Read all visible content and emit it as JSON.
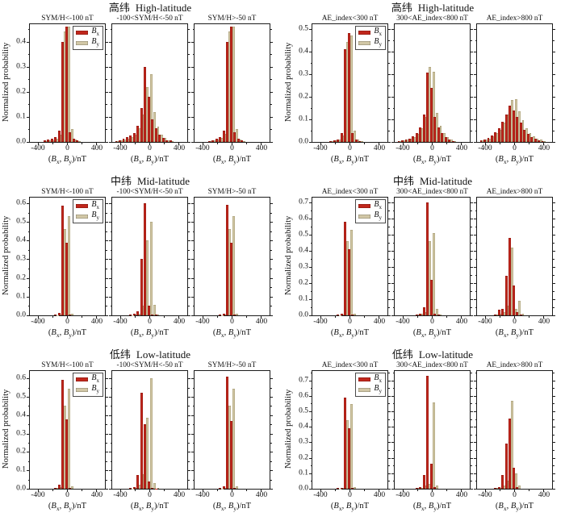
{
  "figure": {
    "colors": {
      "bx": "#c1271c",
      "by": "#d1c7a6",
      "axis": "#1c1c1c"
    },
    "legend": {
      "items": [
        {
          "series": "bx",
          "base": "B",
          "sub": "x"
        },
        {
          "series": "by",
          "base": "B",
          "sub": "y"
        }
      ]
    },
    "xlabel_parts": [
      {
        "t": "("
      },
      {
        "t": "B",
        "i": true,
        "sub": "x"
      },
      {
        "t": ", "
      },
      {
        "t": "B",
        "i": true,
        "sub": "y"
      },
      {
        "t": ")/nT"
      }
    ],
    "xlim": [
      -520,
      520
    ],
    "xticks_major": [
      -400,
      0,
      400
    ],
    "xticks_minor": [
      -200,
      200
    ],
    "grid": false
  },
  "chart_data": {
    "type": "bar",
    "note": "bars = [bin center x (nT), Bx normalized probability, By normalized probability]",
    "groups": [
      {
        "title_cn": "高纬",
        "title_en": "High-latitude",
        "ylabel": "Normalized probability",
        "ylim": 0.47,
        "yticks": [
          0,
          0.1,
          0.2,
          0.3,
          0.4
        ],
        "panels": [
          {
            "title": "SYM/H<-100 nT",
            "bars": [
              [
                -300,
                0.005,
                0.003
              ],
              [
                -250,
                0.01,
                0.006
              ],
              [
                -200,
                0.012,
                0.008
              ],
              [
                -150,
                0.02,
                0.014
              ],
              [
                -100,
                0.045,
                0.03
              ],
              [
                -50,
                0.4,
                0.44
              ],
              [
                0,
                0.46,
                0.46
              ],
              [
                50,
                0.04,
                0.05
              ],
              [
                100,
                0.012,
                0.01
              ],
              [
                150,
                0.005,
                0.004
              ]
            ]
          },
          {
            "title": "-100<SYM/H<-50 nT",
            "bars": [
              [
                -450,
                0.004,
                0.003
              ],
              [
                -400,
                0.008,
                0.006
              ],
              [
                -350,
                0.012,
                0.01
              ],
              [
                -300,
                0.018,
                0.014
              ],
              [
                -250,
                0.025,
                0.02
              ],
              [
                -200,
                0.035,
                0.03
              ],
              [
                -150,
                0.065,
                0.055
              ],
              [
                -100,
                0.135,
                0.11
              ],
              [
                -50,
                0.3,
                0.22
              ],
              [
                0,
                0.18,
                0.27
              ],
              [
                50,
                0.09,
                0.12
              ],
              [
                100,
                0.055,
                0.06
              ],
              [
                150,
                0.03,
                0.03
              ],
              [
                200,
                0.015,
                0.015
              ],
              [
                250,
                0.008,
                0.008
              ],
              [
                300,
                0.005,
                0.004
              ]
            ]
          },
          {
            "title": "SYM/H>-50 nT",
            "bars": [
              [
                -300,
                0.004,
                0.002
              ],
              [
                -250,
                0.008,
                0.005
              ],
              [
                -200,
                0.012,
                0.009
              ],
              [
                -150,
                0.02,
                0.015
              ],
              [
                -100,
                0.045,
                0.032
              ],
              [
                -50,
                0.4,
                0.44
              ],
              [
                0,
                0.46,
                0.46
              ],
              [
                50,
                0.04,
                0.05
              ],
              [
                100,
                0.012,
                0.01
              ],
              [
                150,
                0.005,
                0.003
              ]
            ]
          }
        ]
      },
      {
        "title_cn": "高纬",
        "title_en": "High-latitude",
        "ylabel": "Normalized probability",
        "ylim": 0.52,
        "yticks": [
          0,
          0.1,
          0.2,
          0.3,
          0.4,
          0.5
        ],
        "panels": [
          {
            "title": "AE_index<300 nT",
            "bars": [
              [
                -250,
                0.005,
                0.003
              ],
              [
                -200,
                0.008,
                0.006
              ],
              [
                -150,
                0.012,
                0.01
              ],
              [
                -100,
                0.04,
                0.03
              ],
              [
                -50,
                0.41,
                0.44
              ],
              [
                0,
                0.48,
                0.47
              ],
              [
                50,
                0.038,
                0.05
              ],
              [
                100,
                0.01,
                0.012
              ],
              [
                150,
                0.004,
                0.004
              ]
            ]
          },
          {
            "title": "300<AE_index<800 nT",
            "bars": [
              [
                -450,
                0.004,
                0.003
              ],
              [
                -400,
                0.007,
                0.006
              ],
              [
                -350,
                0.01,
                0.009
              ],
              [
                -300,
                0.015,
                0.013
              ],
              [
                -250,
                0.025,
                0.022
              ],
              [
                -200,
                0.04,
                0.035
              ],
              [
                -150,
                0.065,
                0.06
              ],
              [
                -100,
                0.12,
                0.11
              ],
              [
                -50,
                0.305,
                0.33
              ],
              [
                0,
                0.24,
                0.31
              ],
              [
                50,
                0.11,
                0.13
              ],
              [
                100,
                0.065,
                0.07
              ],
              [
                150,
                0.04,
                0.04
              ],
              [
                200,
                0.02,
                0.02
              ],
              [
                250,
                0.01,
                0.01
              ],
              [
                300,
                0.005,
                0.005
              ]
            ]
          },
          {
            "title": "AE_index>800 nT",
            "bars": [
              [
                -450,
                0.008,
                0.006
              ],
              [
                -400,
                0.012,
                0.01
              ],
              [
                -350,
                0.018,
                0.015
              ],
              [
                -300,
                0.028,
                0.024
              ],
              [
                -250,
                0.042,
                0.038
              ],
              [
                -200,
                0.06,
                0.055
              ],
              [
                -150,
                0.09,
                0.085
              ],
              [
                -100,
                0.12,
                0.12
              ],
              [
                -50,
                0.16,
                0.185
              ],
              [
                0,
                0.14,
                0.19
              ],
              [
                50,
                0.11,
                0.135
              ],
              [
                100,
                0.085,
                0.095
              ],
              [
                150,
                0.055,
                0.06
              ],
              [
                200,
                0.035,
                0.04
              ],
              [
                250,
                0.022,
                0.025
              ],
              [
                300,
                0.014,
                0.015
              ],
              [
                350,
                0.008,
                0.009
              ],
              [
                400,
                0.004,
                0.005
              ]
            ]
          }
        ]
      },
      {
        "title_cn": "中纬",
        "title_en": "Mid-latitude",
        "ylabel": "Normalized probability",
        "ylim": 0.63,
        "yticks": [
          0,
          0.1,
          0.2,
          0.3,
          0.4,
          0.5,
          0.6
        ],
        "panels": [
          {
            "title": "SYM/H<-100 nT",
            "bars": [
              [
                -150,
                0.004,
                0.002
              ],
              [
                -100,
                0.012,
                0.006
              ],
              [
                -50,
                0.585,
                0.46
              ],
              [
                0,
                0.39,
                0.53
              ],
              [
                50,
                0.006,
                0.01
              ]
            ]
          },
          {
            "title": "-100<SYM/H<-50 nT",
            "bars": [
              [
                -250,
                0.004,
                0.002
              ],
              [
                -200,
                0.008,
                0.004
              ],
              [
                -150,
                0.022,
                0.01
              ],
              [
                -100,
                0.3,
                0.05
              ],
              [
                -50,
                0.6,
                0.4
              ],
              [
                0,
                0.05,
                0.5
              ],
              [
                50,
                0.006,
                0.055
              ],
              [
                100,
                0.003,
                0.005
              ]
            ]
          },
          {
            "title": "SYM/H>-50 nT",
            "bars": [
              [
                -150,
                0.003,
                0.002
              ],
              [
                -100,
                0.008,
                0.005
              ],
              [
                -50,
                0.59,
                0.46
              ],
              [
                0,
                0.39,
                0.53
              ],
              [
                50,
                0.006,
                0.01
              ]
            ]
          }
        ]
      },
      {
        "title_cn": "中纬",
        "title_en": "Mid-latitude",
        "ylabel": "Normalized probability",
        "ylim": 0.73,
        "yticks": [
          0,
          0.1,
          0.2,
          0.3,
          0.4,
          0.5,
          0.6,
          0.7
        ],
        "panels": [
          {
            "title": "AE_index<300 nT",
            "bars": [
              [
                -150,
                0.004,
                0.002
              ],
              [
                -100,
                0.01,
                0.006
              ],
              [
                -50,
                0.58,
                0.46
              ],
              [
                0,
                0.41,
                0.53
              ],
              [
                50,
                0.006,
                0.012
              ]
            ]
          },
          {
            "title": "300<AE_index<800 nT",
            "bars": [
              [
                -200,
                0.005,
                0.003
              ],
              [
                -150,
                0.012,
                0.008
              ],
              [
                -100,
                0.05,
                0.02
              ],
              [
                -50,
                0.7,
                0.46
              ],
              [
                0,
                0.22,
                0.51
              ],
              [
                50,
                0.012,
                0.04
              ],
              [
                100,
                0.004,
                0.005
              ]
            ]
          },
          {
            "title": "AE_index>800 nT",
            "bars": [
              [
                -250,
                0.006,
                0.004
              ],
              [
                -200,
                0.035,
                0.01
              ],
              [
                -150,
                0.04,
                0.02
              ],
              [
                -100,
                0.245,
                0.06
              ],
              [
                -50,
                0.48,
                0.42
              ],
              [
                0,
                0.185,
                0.04
              ],
              [
                50,
                0.02,
                0.09
              ],
              [
                100,
                0.006,
                0.01
              ]
            ]
          }
        ]
      },
      {
        "title_cn": "低纬",
        "title_en": "Low-latitude",
        "ylabel": "Normalized probability",
        "ylim": 0.64,
        "yticks": [
          0,
          0.1,
          0.2,
          0.3,
          0.4,
          0.5,
          0.6
        ],
        "panels": [
          {
            "title": "SYM/H<-100 nT",
            "bars": [
              [
                -150,
                0.005,
                0.003
              ],
              [
                -100,
                0.02,
                0.008
              ],
              [
                -50,
                0.59,
                0.45
              ],
              [
                0,
                0.375,
                0.545
              ],
              [
                50,
                0.006,
                0.012
              ]
            ]
          },
          {
            "title": "-100<SYM/H<-50 nT",
            "bars": [
              [
                -250,
                0.004,
                0.002
              ],
              [
                -200,
                0.01,
                0.005
              ],
              [
                -150,
                0.075,
                0.02
              ],
              [
                -100,
                0.52,
                0.08
              ],
              [
                -50,
                0.35,
                0.385
              ],
              [
                0,
                0.04,
                0.6
              ],
              [
                50,
                0.005,
                0.03
              ],
              [
                100,
                0.002,
                0.004
              ]
            ]
          },
          {
            "title": "SYM/H>-50 nT",
            "bars": [
              [
                -150,
                0.004,
                0.002
              ],
              [
                -100,
                0.012,
                0.006
              ],
              [
                -50,
                0.61,
                0.45
              ],
              [
                0,
                0.37,
                0.545
              ],
              [
                50,
                0.006,
                0.012
              ]
            ]
          }
        ]
      },
      {
        "title_cn": "低纬",
        "title_en": "Low-latitude",
        "ylabel": "Normalized probability",
        "ylim": 0.76,
        "yticks": [
          0,
          0.1,
          0.2,
          0.3,
          0.4,
          0.5,
          0.6,
          0.7
        ],
        "panels": [
          {
            "title": "AE_index<300 nT",
            "bars": [
              [
                -150,
                0.004,
                0.002
              ],
              [
                -100,
                0.006,
                0.004
              ],
              [
                -50,
                0.59,
                0.44
              ],
              [
                0,
                0.39,
                0.545
              ],
              [
                50,
                0.006,
                0.012
              ]
            ]
          },
          {
            "title": "300<AE_index<800 nT",
            "bars": [
              [
                -200,
                0.005,
                0.003
              ],
              [
                -150,
                0.008,
                0.005
              ],
              [
                -100,
                0.09,
                0.02
              ],
              [
                -50,
                0.73,
                0.03
              ],
              [
                0,
                0.16,
                0.555
              ],
              [
                50,
                0.01,
                0.02
              ]
            ]
          },
          {
            "title": "AE_index>800 nT",
            "bars": [
              [
                -250,
                0.005,
                0.003
              ],
              [
                -200,
                0.012,
                0.006
              ],
              [
                -150,
                0.09,
                0.02
              ],
              [
                -100,
                0.29,
                0.05
              ],
              [
                -50,
                0.455,
                0.57
              ],
              [
                0,
                0.135,
                0.1
              ],
              [
                50,
                0.012,
                0.02
              ]
            ]
          }
        ]
      }
    ]
  }
}
